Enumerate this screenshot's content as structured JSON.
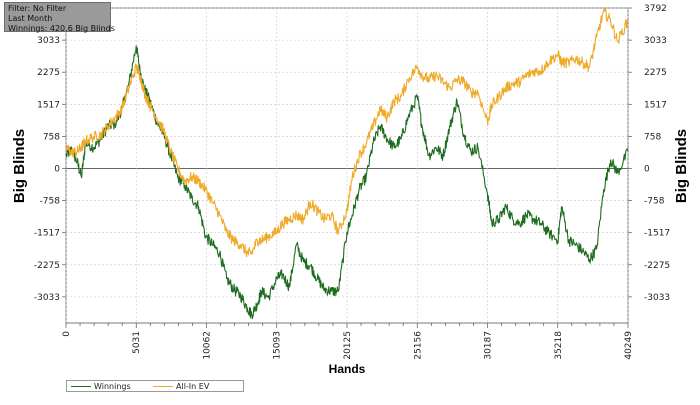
{
  "info_box": {
    "filter": "Filter: No Filter",
    "period": "Last Month",
    "winnings": "Winnings: 420.6 Big Blinds"
  },
  "legend": {
    "items": [
      {
        "label": "Winnings",
        "color": "#1f6b1f"
      },
      {
        "label": "All-In EV",
        "color": "#f0aa2a"
      }
    ]
  },
  "chart_data": {
    "type": "line",
    "xlabel": "Hands",
    "ylabel": "Big Blinds",
    "xlim": [
      0,
      40249
    ],
    "ylim": [
      -3650,
      3792
    ],
    "x_ticks": [
      0,
      5031,
      10062,
      15093,
      20125,
      25156,
      30187,
      35218,
      40249
    ],
    "y_ticks": [
      -3033,
      -2275,
      -1517,
      -758,
      0,
      758,
      1517,
      2275,
      3033,
      3792
    ],
    "y_tick_labels_left": [
      "-3033",
      "-2275",
      "-1517",
      "-758",
      "0",
      "758",
      "1517",
      "2275",
      "3033"
    ],
    "y_tick_labels_right": [
      "-3033",
      "-2275",
      "-1517",
      "-758",
      "0",
      "758",
      "1517",
      "2275",
      "3033",
      "3792"
    ],
    "grid": true,
    "zero_line": true,
    "series": [
      {
        "name": "Winnings",
        "color": "#1f6b1f",
        "points": [
          [
            0,
            300
          ],
          [
            400,
            450
          ],
          [
            800,
            150
          ],
          [
            1100,
            -200
          ],
          [
            1400,
            600
          ],
          [
            2000,
            500
          ],
          [
            2500,
            700
          ],
          [
            3000,
            1000
          ],
          [
            3500,
            1050
          ],
          [
            4000,
            1400
          ],
          [
            4500,
            2000
          ],
          [
            5031,
            2900
          ],
          [
            5300,
            2300
          ],
          [
            5600,
            1900
          ],
          [
            6000,
            1600
          ],
          [
            6500,
            1100
          ],
          [
            7000,
            800
          ],
          [
            7500,
            300
          ],
          [
            8000,
            -200
          ],
          [
            8500,
            -400
          ],
          [
            9000,
            -700
          ],
          [
            9500,
            -900
          ],
          [
            10000,
            -1600
          ],
          [
            10500,
            -1800
          ],
          [
            11000,
            -2000
          ],
          [
            11500,
            -2600
          ],
          [
            12000,
            -2850
          ],
          [
            12500,
            -3000
          ],
          [
            13000,
            -3300
          ],
          [
            13300,
            -3450
          ],
          [
            13700,
            -3200
          ],
          [
            14000,
            -2900
          ],
          [
            14500,
            -3050
          ],
          [
            15093,
            -2600
          ],
          [
            15500,
            -2500
          ],
          [
            16000,
            -2800
          ],
          [
            16500,
            -1800
          ],
          [
            17000,
            -2200
          ],
          [
            17500,
            -2300
          ],
          [
            18000,
            -2600
          ],
          [
            18500,
            -2850
          ],
          [
            19000,
            -2900
          ],
          [
            19500,
            -2900
          ],
          [
            20125,
            -1500
          ],
          [
            20500,
            -1100
          ],
          [
            21000,
            -500
          ],
          [
            21500,
            -200
          ],
          [
            22000,
            600
          ],
          [
            22500,
            1000
          ],
          [
            23000,
            700
          ],
          [
            23500,
            500
          ],
          [
            24000,
            700
          ],
          [
            24500,
            1200
          ],
          [
            25156,
            1700
          ],
          [
            25500,
            1000
          ],
          [
            26000,
            300
          ],
          [
            26500,
            500
          ],
          [
            27000,
            300
          ],
          [
            27500,
            1000
          ],
          [
            28000,
            1600
          ],
          [
            28500,
            800
          ],
          [
            29000,
            400
          ],
          [
            29500,
            500
          ],
          [
            30187,
            -600
          ],
          [
            30500,
            -1300
          ],
          [
            31000,
            -1200
          ],
          [
            31500,
            -900
          ],
          [
            32000,
            -1200
          ],
          [
            32500,
            -1300
          ],
          [
            33000,
            -1100
          ],
          [
            33500,
            -1200
          ],
          [
            34000,
            -1300
          ],
          [
            34500,
            -1500
          ],
          [
            35218,
            -1700
          ],
          [
            35500,
            -900
          ],
          [
            36000,
            -1700
          ],
          [
            36500,
            -1800
          ],
          [
            37000,
            -1950
          ],
          [
            37500,
            -2150
          ],
          [
            38000,
            -1900
          ],
          [
            38500,
            -500
          ],
          [
            39000,
            200
          ],
          [
            39500,
            -100
          ],
          [
            40249,
            400
          ]
        ]
      },
      {
        "name": "All-In EV",
        "color": "#f0aa2a",
        "points": [
          [
            0,
            500
          ],
          [
            400,
            380
          ],
          [
            800,
            400
          ],
          [
            1100,
            500
          ],
          [
            1400,
            650
          ],
          [
            2000,
            750
          ],
          [
            2500,
            800
          ],
          [
            3000,
            1000
          ],
          [
            3500,
            1200
          ],
          [
            4000,
            1400
          ],
          [
            4500,
            1900
          ],
          [
            5031,
            2400
          ],
          [
            5300,
            2200
          ],
          [
            5600,
            1800
          ],
          [
            6000,
            1500
          ],
          [
            6500,
            1200
          ],
          [
            7000,
            900
          ],
          [
            7500,
            400
          ],
          [
            8000,
            0
          ],
          [
            8500,
            -300
          ],
          [
            9000,
            -200
          ],
          [
            9500,
            -300
          ],
          [
            10000,
            -500
          ],
          [
            10500,
            -800
          ],
          [
            11000,
            -1100
          ],
          [
            11500,
            -1500
          ],
          [
            12000,
            -1700
          ],
          [
            12500,
            -1800
          ],
          [
            13000,
            -2000
          ],
          [
            13300,
            -2000
          ],
          [
            13700,
            -1700
          ],
          [
            14000,
            -1700
          ],
          [
            14500,
            -1600
          ],
          [
            15093,
            -1500
          ],
          [
            15500,
            -1300
          ],
          [
            16000,
            -1200
          ],
          [
            16500,
            -1100
          ],
          [
            17000,
            -1200
          ],
          [
            17500,
            -800
          ],
          [
            18000,
            -1000
          ],
          [
            18500,
            -1200
          ],
          [
            19000,
            -1100
          ],
          [
            19500,
            -1500
          ],
          [
            20125,
            -1000
          ],
          [
            20500,
            -200
          ],
          [
            21000,
            300
          ],
          [
            21500,
            600
          ],
          [
            22000,
            1000
          ],
          [
            22500,
            1400
          ],
          [
            23000,
            1200
          ],
          [
            23500,
            1600
          ],
          [
            24000,
            1700
          ],
          [
            24500,
            2100
          ],
          [
            25156,
            2400
          ],
          [
            25500,
            2200
          ],
          [
            26000,
            2100
          ],
          [
            26500,
            2200
          ],
          [
            27000,
            2050
          ],
          [
            27500,
            1900
          ],
          [
            28000,
            2100
          ],
          [
            28500,
            2050
          ],
          [
            29000,
            1800
          ],
          [
            29500,
            1800
          ],
          [
            30187,
            1100
          ],
          [
            30500,
            1500
          ],
          [
            31000,
            1700
          ],
          [
            31500,
            1900
          ],
          [
            32000,
            2000
          ],
          [
            32500,
            2050
          ],
          [
            33000,
            2200
          ],
          [
            33500,
            2300
          ],
          [
            34000,
            2300
          ],
          [
            34500,
            2500
          ],
          [
            35218,
            2700
          ],
          [
            35500,
            2500
          ],
          [
            36000,
            2500
          ],
          [
            36500,
            2600
          ],
          [
            37000,
            2500
          ],
          [
            37500,
            2400
          ],
          [
            38000,
            3100
          ],
          [
            38500,
            3700
          ],
          [
            39000,
            3500
          ],
          [
            39500,
            3000
          ],
          [
            40249,
            3500
          ]
        ]
      }
    ]
  }
}
